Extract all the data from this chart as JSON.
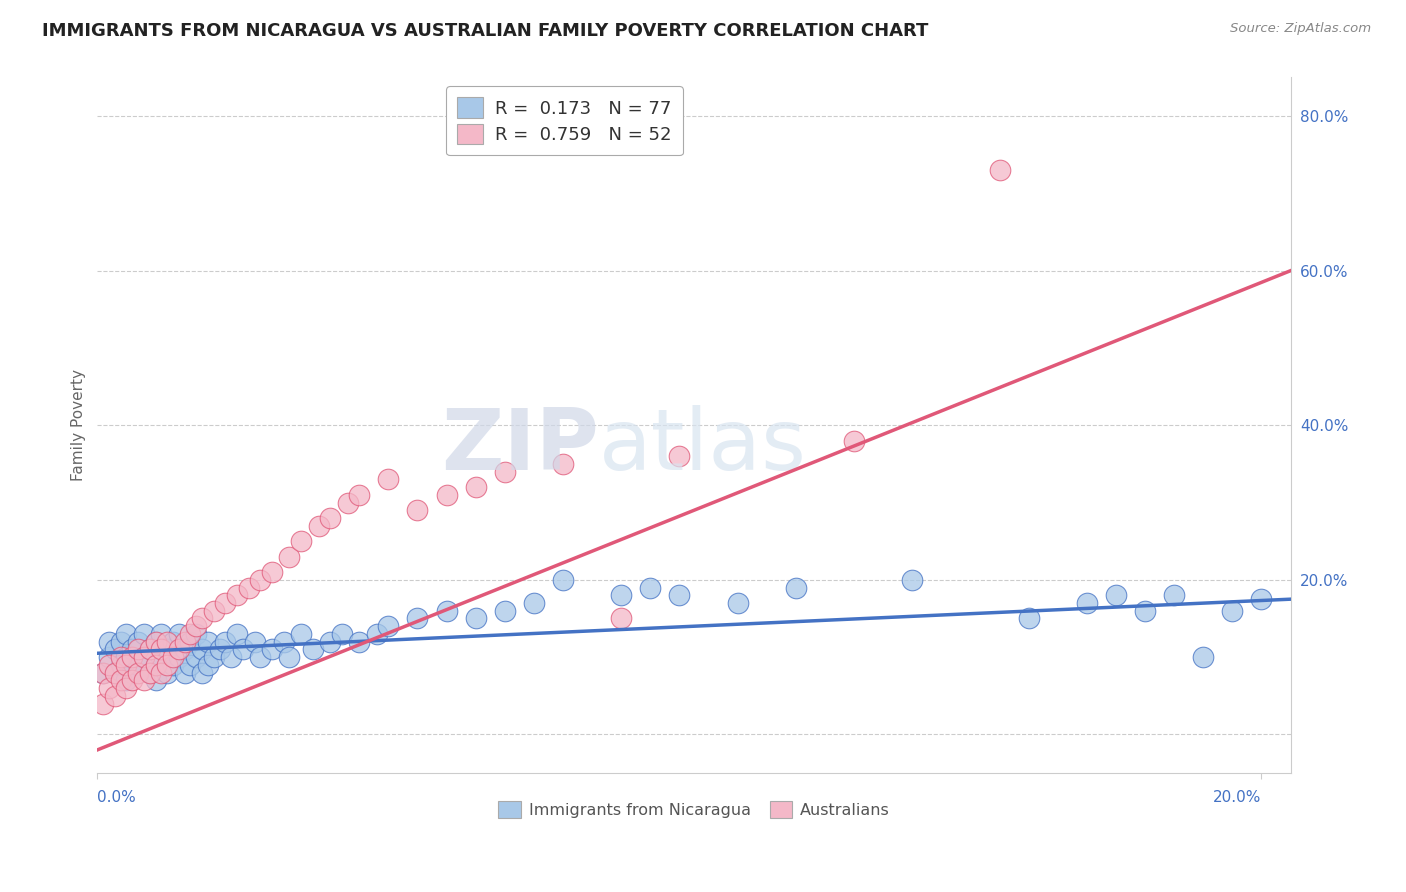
{
  "title": "IMMIGRANTS FROM NICARAGUA VS AUSTRALIAN FAMILY POVERTY CORRELATION CHART",
  "source": "Source: ZipAtlas.com",
  "ylabel": "Family Poverty",
  "legend_label1": "Immigrants from Nicaragua",
  "legend_label2": "Australians",
  "r1": 0.173,
  "n1": 77,
  "r2": 0.759,
  "n2": 52,
  "xlim": [
    0.0,
    0.205
  ],
  "ylim": [
    -0.05,
    0.85
  ],
  "color_blue": "#a8c8e8",
  "color_pink": "#f4b8c8",
  "line_blue": "#4472c4",
  "line_pink": "#e05878",
  "bg_color": "#ffffff",
  "grid_color": "#cccccc",
  "title_color": "#222222",
  "axis_label_color": "#4472c4",
  "ylabel_color": "#666666",
  "blue_x": [
    0.001,
    0.002,
    0.002,
    0.003,
    0.003,
    0.004,
    0.004,
    0.005,
    0.005,
    0.005,
    0.006,
    0.006,
    0.007,
    0.007,
    0.008,
    0.008,
    0.009,
    0.009,
    0.01,
    0.01,
    0.01,
    0.011,
    0.011,
    0.012,
    0.012,
    0.013,
    0.013,
    0.014,
    0.014,
    0.015,
    0.015,
    0.016,
    0.016,
    0.017,
    0.017,
    0.018,
    0.018,
    0.019,
    0.019,
    0.02,
    0.021,
    0.022,
    0.023,
    0.024,
    0.025,
    0.027,
    0.028,
    0.03,
    0.032,
    0.033,
    0.035,
    0.037,
    0.04,
    0.042,
    0.045,
    0.048,
    0.05,
    0.055,
    0.06,
    0.065,
    0.07,
    0.075,
    0.08,
    0.09,
    0.095,
    0.1,
    0.11,
    0.12,
    0.14,
    0.16,
    0.17,
    0.175,
    0.18,
    0.185,
    0.19,
    0.195,
    0.2
  ],
  "blue_y": [
    0.08,
    0.1,
    0.12,
    0.08,
    0.11,
    0.09,
    0.12,
    0.07,
    0.1,
    0.13,
    0.08,
    0.11,
    0.09,
    0.12,
    0.1,
    0.13,
    0.08,
    0.11,
    0.09,
    0.12,
    0.07,
    0.1,
    0.13,
    0.08,
    0.11,
    0.09,
    0.12,
    0.1,
    0.13,
    0.08,
    0.11,
    0.09,
    0.12,
    0.1,
    0.13,
    0.08,
    0.11,
    0.09,
    0.12,
    0.1,
    0.11,
    0.12,
    0.1,
    0.13,
    0.11,
    0.12,
    0.1,
    0.11,
    0.12,
    0.1,
    0.13,
    0.11,
    0.12,
    0.13,
    0.12,
    0.13,
    0.14,
    0.15,
    0.16,
    0.15,
    0.16,
    0.17,
    0.2,
    0.18,
    0.19,
    0.18,
    0.17,
    0.19,
    0.2,
    0.15,
    0.17,
    0.18,
    0.16,
    0.18,
    0.1,
    0.16,
    0.175
  ],
  "pink_x": [
    0.001,
    0.001,
    0.002,
    0.002,
    0.003,
    0.003,
    0.004,
    0.004,
    0.005,
    0.005,
    0.006,
    0.006,
    0.007,
    0.007,
    0.008,
    0.008,
    0.009,
    0.009,
    0.01,
    0.01,
    0.011,
    0.011,
    0.012,
    0.012,
    0.013,
    0.014,
    0.015,
    0.016,
    0.017,
    0.018,
    0.02,
    0.022,
    0.024,
    0.026,
    0.028,
    0.03,
    0.033,
    0.035,
    0.038,
    0.04,
    0.043,
    0.045,
    0.05,
    0.055,
    0.06,
    0.065,
    0.07,
    0.08,
    0.09,
    0.1,
    0.13,
    0.155
  ],
  "pink_y": [
    0.04,
    0.08,
    0.06,
    0.09,
    0.05,
    0.08,
    0.07,
    0.1,
    0.06,
    0.09,
    0.07,
    0.1,
    0.08,
    0.11,
    0.07,
    0.1,
    0.08,
    0.11,
    0.09,
    0.12,
    0.08,
    0.11,
    0.09,
    0.12,
    0.1,
    0.11,
    0.12,
    0.13,
    0.14,
    0.15,
    0.16,
    0.17,
    0.18,
    0.19,
    0.2,
    0.21,
    0.23,
    0.25,
    0.27,
    0.28,
    0.3,
    0.31,
    0.33,
    0.29,
    0.31,
    0.32,
    0.34,
    0.35,
    0.15,
    0.36,
    0.38,
    0.73
  ],
  "blue_line_x": [
    0.0,
    0.205
  ],
  "blue_line_y": [
    0.105,
    0.175
  ],
  "pink_line_x": [
    0.0,
    0.205
  ],
  "pink_line_y": [
    -0.02,
    0.6
  ]
}
